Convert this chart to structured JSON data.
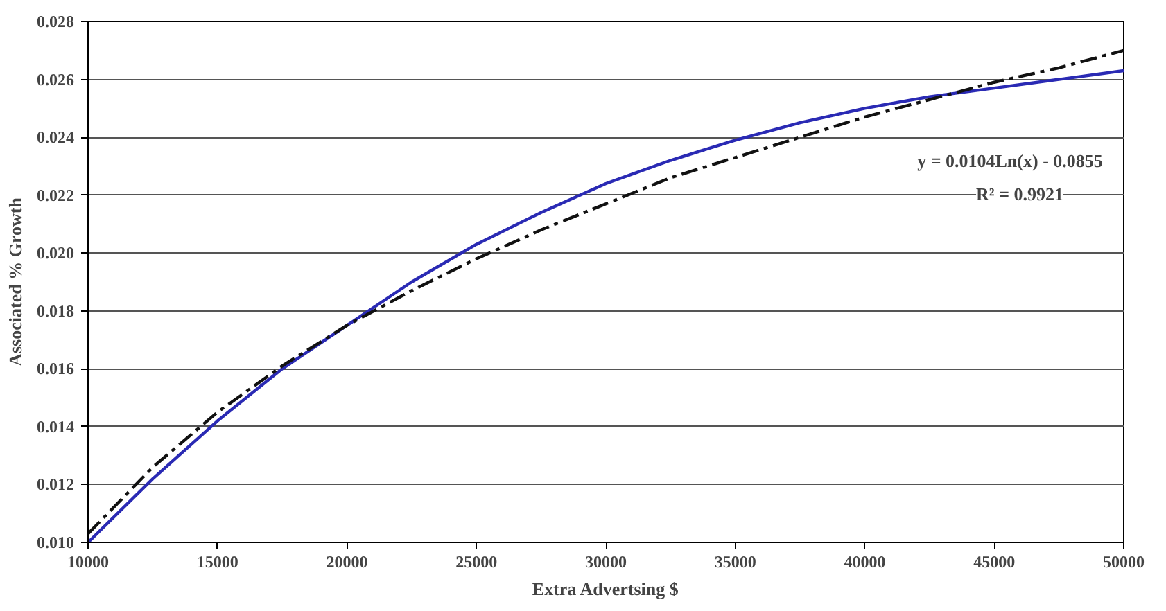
{
  "chart_data": {
    "type": "line",
    "xlabel": "Extra Advertsing $",
    "ylabel": "Associated % Growth",
    "x": [
      10000,
      12500,
      15000,
      17500,
      20000,
      22500,
      25000,
      27500,
      30000,
      32500,
      35000,
      37500,
      40000,
      42500,
      45000,
      47500,
      50000
    ],
    "series": [
      {
        "color": "#2a2ab4",
        "line_style": "solid",
        "values": [
          0.01,
          0.0122,
          0.0142,
          0.016,
          0.0175,
          0.019,
          0.0203,
          0.0214,
          0.0224,
          0.0232,
          0.0239,
          0.0245,
          0.025,
          0.0254,
          0.0257,
          0.026,
          0.0263
        ]
      },
      {
        "color": "#111111",
        "line_style": "dashdot",
        "values": [
          0.0103,
          0.0126,
          0.0145,
          0.0161,
          0.0175,
          0.0187,
          0.0198,
          0.0208,
          0.0217,
          0.0226,
          0.0233,
          0.024,
          0.0247,
          0.0253,
          0.0259,
          0.0264,
          0.027
        ]
      }
    ],
    "xlim": [
      10000,
      50000
    ],
    "xticks": [
      10000,
      15000,
      20000,
      25000,
      30000,
      35000,
      40000,
      45000,
      50000
    ],
    "ylim": [
      0.01,
      0.028
    ],
    "yticks": [
      {
        "value": 0.01,
        "label": "0.010"
      },
      {
        "value": 0.012,
        "label": "0.012"
      },
      {
        "value": 0.014,
        "label": "0.014"
      },
      {
        "value": 0.016,
        "label": "0.016"
      },
      {
        "value": 0.018,
        "label": "0.018"
      },
      {
        "value": 0.02,
        "label": "0.020"
      },
      {
        "value": 0.022,
        "label": "0.022"
      },
      {
        "value": 0.024,
        "label": "0.024"
      },
      {
        "value": 0.026,
        "label": "0.026"
      },
      {
        "value": 0.028,
        "label": "0.028"
      }
    ],
    "grid": "y",
    "marker": "none",
    "annotations": [
      "y = 0.0104Ln(x) - 0.0855",
      "R² = 0.9921"
    ]
  }
}
